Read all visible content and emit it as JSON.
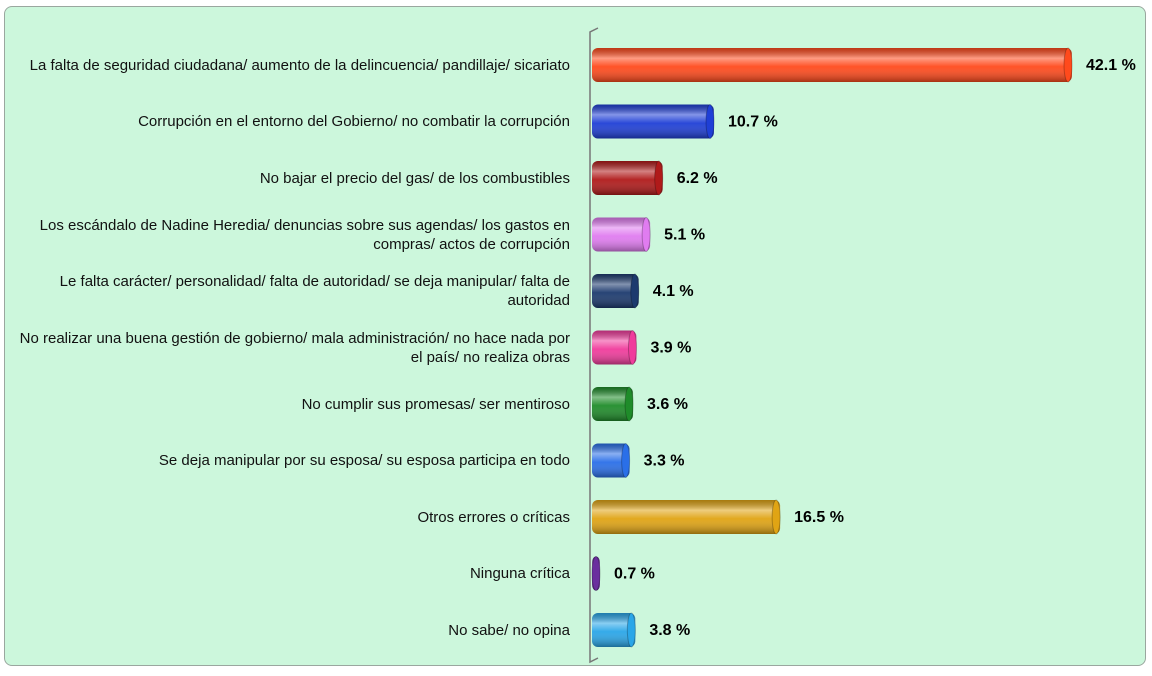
{
  "chart_data": {
    "type": "hbar",
    "categories": [
      "La falta de seguridad ciudadana/ aumento de la delincuencia/ pandillaje/ sicariato",
      "Corrupción en el entorno del Gobierno/ no combatir la corrupción",
      "No bajar el precio del gas/ de los combustibles",
      "Los escándalo de Nadine Heredia/ denuncias sobre sus agendas/ los gastos en compras/ actos de corrupción",
      "Le falta carácter/ personalidad/ falta de autoridad/ se deja manipular/ falta de autoridad",
      "No realizar una buena gestión de gobierno/ mala administración/ no hace nada por el país/ no realiza obras",
      "No cumplir sus promesas/ ser mentiroso",
      "Se deja manipular por su esposa/ su esposa participa en todo",
      "Otros errores o críticas",
      "Ninguna crítica",
      "No sabe/ no opina"
    ],
    "values": [
      42.1,
      10.7,
      6.2,
      5.1,
      4.1,
      3.9,
      3.6,
      3.3,
      16.5,
      0.7,
      3.8
    ],
    "value_labels": [
      "42.1 %",
      "10.7 %",
      "6.2 %",
      "5.1 %",
      "4.1 %",
      "3.9 %",
      "3.6 %",
      "3.3 %",
      "16.5 %",
      "0.7 %",
      "3.8 %"
    ],
    "colors": [
      "#ff4a1c",
      "#1f3fd6",
      "#b01a1a",
      "#e07cf0",
      "#1c3a6e",
      "#f03c9c",
      "#1f8c2a",
      "#2a6fe8",
      "#e0a414",
      "#6a2f9e",
      "#2aa6e8"
    ]
  }
}
